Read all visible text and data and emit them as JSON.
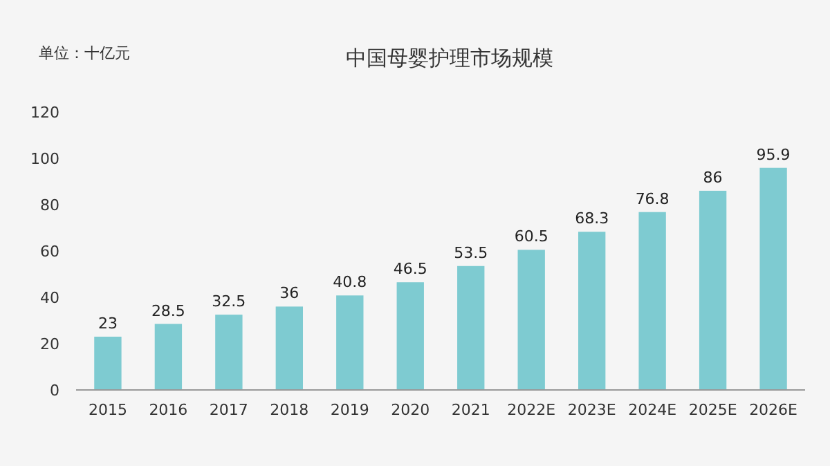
{
  "chart_data": {
    "type": "bar",
    "title": "中国母婴护理市场规模",
    "ylabel": "单位：十亿元",
    "categories": [
      "2015",
      "2016",
      "2017",
      "2018",
      "2019",
      "2020",
      "2021",
      "2022E",
      "2023E",
      "2024E",
      "2025E",
      "2026E"
    ],
    "values": [
      23,
      28.5,
      32.5,
      36,
      40.8,
      46.5,
      53.5,
      60.5,
      68.3,
      76.8,
      86,
      95.9
    ],
    "color": "#7ecbd1",
    "ylim": [
      0,
      120
    ],
    "yticks": [
      0,
      20,
      40,
      60,
      80,
      100,
      120
    ],
    "grid": false,
    "data_labels": true
  }
}
